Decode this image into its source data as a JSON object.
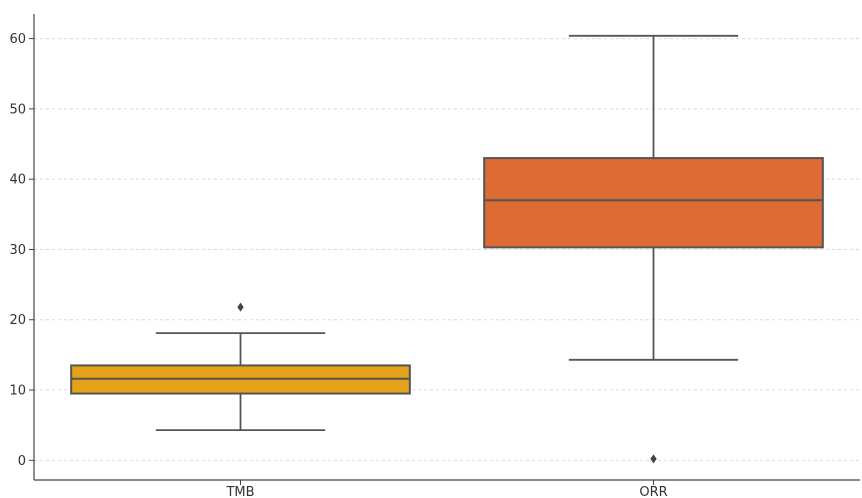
{
  "chart_data": {
    "type": "box",
    "categories": [
      "TMB",
      "ORR"
    ],
    "boxes": [
      {
        "name": "TMB",
        "whisker_low": 4.3,
        "q1": 9.5,
        "median": 11.6,
        "q3": 13.5,
        "whisker_high": 18.1,
        "outliers": [
          21.8
        ],
        "color": "#E3A21A"
      },
      {
        "name": "ORR",
        "whisker_low": 14.3,
        "q1": 30.3,
        "median": 37.0,
        "q3": 43.0,
        "whisker_high": 60.4,
        "outliers": [
          0.2
        ],
        "color": "#DC6B35"
      }
    ],
    "title": "",
    "xlabel": "",
    "ylabel": "",
    "ylim": [
      -2.8,
      63.5
    ],
    "yticks": [
      0,
      10,
      20,
      30,
      40,
      50,
      60
    ],
    "grid": true
  }
}
